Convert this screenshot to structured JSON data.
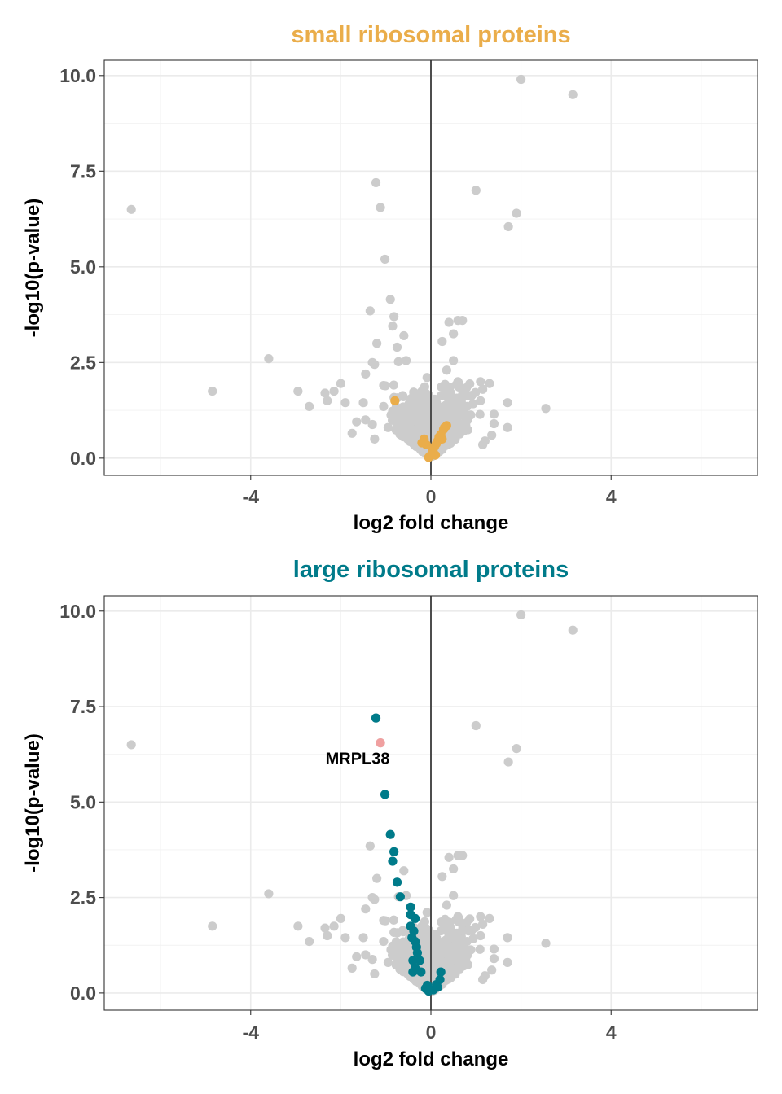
{
  "colors": {
    "background_point": "#cccccc",
    "small_highlight": "#eaad4a",
    "large_highlight": "#007b8a",
    "labeled_point": "#f0a0a0",
    "zero_line": "#4d4d4d"
  },
  "chart_data": [
    {
      "type": "scatter",
      "title": "small ribosomal proteins",
      "title_color": "#eaad4a",
      "xlabel": "log2 fold change",
      "ylabel": "-log10(p-value)",
      "xlim": [
        -7.25,
        7.25
      ],
      "ylim": [
        -0.45,
        10.4
      ],
      "x_ticks": [
        -4,
        0,
        4
      ],
      "x_tick_labels": [
        "-4",
        "0",
        "4"
      ],
      "y_ticks": [
        0.0,
        2.5,
        5.0,
        7.5,
        10.0
      ],
      "y_tick_labels": [
        "0.0",
        "2.5",
        "5.0",
        "7.5",
        "10.0"
      ],
      "grid": true,
      "vertical_line_x": 0,
      "highlight_series": {
        "color": "#eaad4a",
        "points": [
          [
            -0.8,
            1.5
          ],
          [
            0.35,
            0.85
          ],
          [
            0.28,
            0.75
          ],
          [
            0.22,
            0.62
          ],
          [
            0.18,
            0.55
          ],
          [
            0.15,
            0.45
          ],
          [
            0.12,
            0.38
          ],
          [
            0.08,
            0.3
          ],
          [
            0.05,
            0.22
          ],
          [
            0.02,
            0.12
          ],
          [
            -0.02,
            0.05
          ],
          [
            -0.05,
            0.02
          ],
          [
            0.1,
            0.08
          ],
          [
            -0.15,
            0.5
          ],
          [
            -0.18,
            0.42
          ],
          [
            -0.1,
            0.35
          ],
          [
            -0.2,
            0.4
          ],
          [
            0.03,
            0.18
          ],
          [
            0.25,
            0.5
          ],
          [
            0.3,
            0.8
          ]
        ]
      },
      "labeled_points": []
    },
    {
      "type": "scatter",
      "title": "large ribosomal proteins",
      "title_color": "#007b8a",
      "xlabel": "log2 fold change",
      "ylabel": "-log10(p-value)",
      "xlim": [
        -7.25,
        7.25
      ],
      "ylim": [
        -0.45,
        10.4
      ],
      "x_ticks": [
        -4,
        0,
        4
      ],
      "x_tick_labels": [
        "-4",
        "0",
        "4"
      ],
      "y_ticks": [
        0.0,
        2.5,
        5.0,
        7.5,
        10.0
      ],
      "y_tick_labels": [
        "0.0",
        "2.5",
        "5.0",
        "7.5",
        "10.0"
      ],
      "grid": true,
      "vertical_line_x": 0,
      "highlight_series": {
        "color": "#007b8a",
        "points": [
          [
            -1.22,
            7.2
          ],
          [
            -1.02,
            5.2
          ],
          [
            -0.9,
            4.15
          ],
          [
            -0.82,
            3.7
          ],
          [
            -0.85,
            3.45
          ],
          [
            -0.75,
            2.9
          ],
          [
            -0.68,
            2.52
          ],
          [
            -0.45,
            2.25
          ],
          [
            -0.45,
            2.05
          ],
          [
            -0.35,
            1.95
          ],
          [
            -0.45,
            1.75
          ],
          [
            -0.38,
            1.62
          ],
          [
            -0.42,
            1.45
          ],
          [
            -0.35,
            1.35
          ],
          [
            -0.32,
            1.2
          ],
          [
            -0.3,
            1.05
          ],
          [
            -0.4,
            0.85
          ],
          [
            -0.25,
            0.85
          ],
          [
            -0.35,
            0.65
          ],
          [
            -0.4,
            0.55
          ],
          [
            -0.22,
            0.55
          ],
          [
            0.22,
            0.55
          ],
          [
            0.2,
            0.35
          ],
          [
            0.12,
            0.22
          ],
          [
            -0.08,
            0.2
          ],
          [
            -0.12,
            0.12
          ],
          [
            0.05,
            0.08
          ],
          [
            -0.05,
            0.05
          ],
          [
            0.15,
            0.15
          ]
        ]
      },
      "labeled_points": [
        {
          "x": -1.12,
          "y": 6.55,
          "label": "MRPL38",
          "color": "#f0a0a0"
        }
      ]
    }
  ],
  "background_points": {
    "color": "#cccccc",
    "outliers": [
      [
        2.0,
        9.9
      ],
      [
        3.15,
        9.5
      ],
      [
        -6.65,
        6.5
      ],
      [
        -1.22,
        7.2
      ],
      [
        -1.12,
        6.55
      ],
      [
        1.0,
        7.0
      ],
      [
        1.9,
        6.4
      ],
      [
        1.72,
        6.05
      ],
      [
        -1.02,
        5.2
      ],
      [
        -3.6,
        2.6
      ],
      [
        -4.85,
        1.75
      ],
      [
        -0.9,
        4.15
      ],
      [
        -0.82,
        3.7
      ],
      [
        -1.35,
        3.85
      ],
      [
        -0.85,
        3.45
      ],
      [
        -1.2,
        3.0
      ],
      [
        -0.6,
        3.2
      ],
      [
        -0.75,
        2.9
      ],
      [
        0.4,
        3.55
      ],
      [
        0.6,
        3.6
      ],
      [
        0.7,
        3.6
      ],
      [
        0.5,
        3.25
      ],
      [
        0.25,
        3.05
      ],
      [
        -1.3,
        2.5
      ],
      [
        -1.25,
        2.45
      ],
      [
        -0.72,
        2.52
      ],
      [
        -0.55,
        2.55
      ],
      [
        -1.45,
        2.2
      ],
      [
        -1.05,
        1.9
      ],
      [
        -2.0,
        1.95
      ],
      [
        -2.35,
        1.7
      ],
      [
        -2.3,
        1.5
      ],
      [
        -2.15,
        1.75
      ],
      [
        -2.95,
        1.75
      ],
      [
        -2.7,
        1.35
      ],
      [
        -1.9,
        1.45
      ],
      [
        -1.5,
        1.45
      ],
      [
        -1.45,
        1.0
      ],
      [
        -1.65,
        0.95
      ],
      [
        -1.3,
        0.88
      ],
      [
        -1.75,
        0.65
      ],
      [
        -1.25,
        0.5
      ],
      [
        -1.05,
        1.35
      ],
      [
        -0.95,
        0.8
      ],
      [
        1.1,
        2.0
      ],
      [
        1.15,
        1.8
      ],
      [
        1.3,
        1.95
      ],
      [
        1.1,
        1.5
      ],
      [
        1.4,
        1.15
      ],
      [
        1.4,
        0.9
      ],
      [
        1.7,
        1.45
      ],
      [
        1.7,
        0.8
      ],
      [
        1.35,
        0.6
      ],
      [
        1.2,
        0.45
      ],
      [
        2.55,
        1.3
      ],
      [
        1.15,
        0.35
      ],
      [
        0.5,
        2.55
      ],
      [
        0.35,
        2.3
      ],
      [
        0.6,
        2.0
      ],
      [
        0.8,
        1.35
      ]
    ],
    "cluster": {
      "count": 900,
      "x_spread": 0.33,
      "y_spread": 0.55,
      "x_range": [
        -1.1,
        1.25
      ],
      "y_range": [
        0.0,
        2.85
      ],
      "seed": 17
    }
  }
}
